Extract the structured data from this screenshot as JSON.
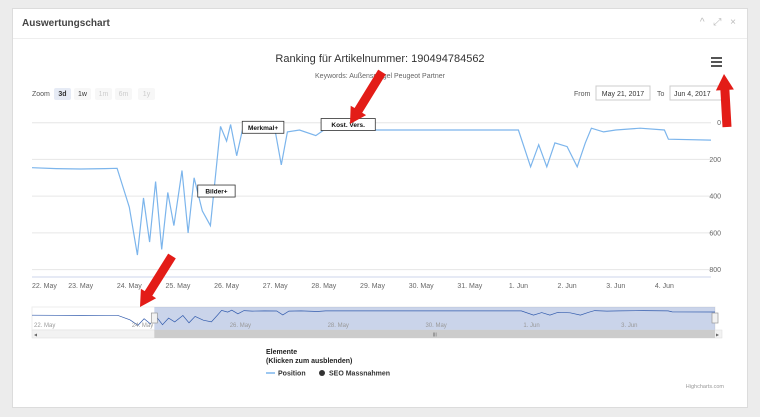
{
  "panel": {
    "title": "Auswertungschart",
    "tools": [
      "^",
      "⤢",
      "×"
    ]
  },
  "chart_data": {
    "type": "line",
    "title": "Ranking für Artikelnummer: 190494784562",
    "subtitle": "Keywords: Außenspiegel Peugeot Partner",
    "x_axis": {
      "type": "datetime",
      "start": "2017-05-22",
      "end": "2017-06-04T23:00",
      "tick_labels": [
        "22. May",
        "23. May",
        "24. May",
        "25. May",
        "26. May",
        "27. May",
        "28. May",
        "29. May",
        "30. May",
        "31. May",
        "1. Jun",
        "2. Jun",
        "3. Jun",
        "4. Jun"
      ]
    },
    "y_axis": {
      "reversed": true,
      "ylim": [
        0,
        800
      ],
      "tick_labels": [
        "0",
        "200",
        "400",
        "600",
        "800"
      ],
      "min": -80,
      "max": 840
    },
    "grid": true,
    "series": [
      {
        "name": "Position",
        "color": "#7cb5ec",
        "points": [
          [
            "2017-05-22T00:00",
            245
          ],
          [
            "2017-05-22T12:00",
            250
          ],
          [
            "2017-05-23T00:00",
            252
          ],
          [
            "2017-05-23T12:00",
            250
          ],
          [
            "2017-05-23T18:00",
            248
          ],
          [
            "2017-05-24T00:00",
            460
          ],
          [
            "2017-05-24T04:00",
            720
          ],
          [
            "2017-05-24T07:00",
            410
          ],
          [
            "2017-05-24T10:00",
            650
          ],
          [
            "2017-05-24T13:00",
            320
          ],
          [
            "2017-05-24T16:00",
            690
          ],
          [
            "2017-05-24T19:00",
            380
          ],
          [
            "2017-05-24T22:00",
            560
          ],
          [
            "2017-05-25T02:00",
            260
          ],
          [
            "2017-05-25T05:00",
            600
          ],
          [
            "2017-05-25T08:00",
            300
          ],
          [
            "2017-05-25T12:00",
            480
          ],
          [
            "2017-05-25T16:00",
            560
          ],
          [
            "2017-05-25T19:00",
            240
          ],
          [
            "2017-05-25T21:00",
            20
          ],
          [
            "2017-05-26T00:00",
            100
          ],
          [
            "2017-05-26T02:00",
            10
          ],
          [
            "2017-05-26T05:00",
            180
          ],
          [
            "2017-05-26T08:00",
            30
          ],
          [
            "2017-05-26T12:00",
            50
          ],
          [
            "2017-05-26T18:00",
            40
          ],
          [
            "2017-05-27T00:00",
            45
          ],
          [
            "2017-05-27T03:00",
            230
          ],
          [
            "2017-05-27T06:00",
            50
          ],
          [
            "2017-05-27T12:00",
            40
          ],
          [
            "2017-05-27T20:00",
            70
          ],
          [
            "2017-05-28T00:00",
            40
          ],
          [
            "2017-05-28T12:00",
            40
          ],
          [
            "2017-05-29T00:00",
            40
          ],
          [
            "2017-05-30T00:00",
            40
          ],
          [
            "2017-05-31T00:00",
            40
          ],
          [
            "2017-06-01T00:00",
            40
          ],
          [
            "2017-06-01T06:00",
            240
          ],
          [
            "2017-06-01T10:00",
            120
          ],
          [
            "2017-06-01T14:00",
            240
          ],
          [
            "2017-06-01T18:00",
            110
          ],
          [
            "2017-06-02T00:00",
            130
          ],
          [
            "2017-06-02T05:00",
            240
          ],
          [
            "2017-06-02T09:00",
            110
          ],
          [
            "2017-06-02T12:00",
            30
          ],
          [
            "2017-06-02T18:00",
            50
          ],
          [
            "2017-06-03T00:00",
            40
          ],
          [
            "2017-06-03T12:00",
            30
          ],
          [
            "2017-06-04T00:00",
            40
          ],
          [
            "2017-06-04T02:00",
            90
          ],
          [
            "2017-06-04T23:00",
            95
          ]
        ]
      }
    ],
    "flags": [
      {
        "label": "Bilder+",
        "x": "2017-05-25T19:00",
        "y": 372
      },
      {
        "label": "Merkmal+",
        "x": "2017-05-26T18:00",
        "y": 25
      },
      {
        "label": "Kost. Vers.",
        "x": "2017-05-28T12:00",
        "y": 10
      }
    ],
    "legend": {
      "title": "Elemente",
      "subtitle": "(Klicken zum ausblenden)",
      "placement": "bottom-center",
      "items": [
        {
          "name": "Position",
          "symbol": "line",
          "color": "#7cb5ec"
        },
        {
          "name": "SEO Massnahmen",
          "symbol": "circle",
          "color": "#333333"
        }
      ]
    },
    "navigator": {
      "range_start": "2017-05-24T12:00",
      "range_end": "2017-06-04T23:00",
      "tick_labels": [
        "22. May",
        "24. May",
        "26. May",
        "28. May",
        "30. May",
        "1. Jun",
        "3. Jun"
      ]
    },
    "credits": "Highcharts.com"
  },
  "controls": {
    "zoom_label": "Zoom",
    "zoom_buttons": [
      "3d",
      "1w",
      "1m",
      "6m",
      "1y"
    ],
    "from_label": "From",
    "from_value": "May 21, 2017",
    "to_label": "To",
    "to_value": "Jun 4, 2017",
    "menu_icon": "hamburger-menu-icon",
    "scrollbar_grip": "III"
  },
  "annotations": {
    "arrow_color": "#e31c17"
  }
}
